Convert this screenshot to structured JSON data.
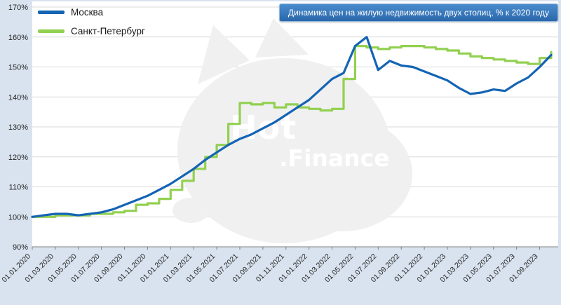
{
  "title_box": {
    "text": "Динамика цен на жилую недвижимость двух столиц, % к 2020 году"
  },
  "legend": {
    "items": [
      {
        "label": "Москва",
        "color": "#1464b4"
      },
      {
        "label": "Санкт-Петербург",
        "color": "#92d050"
      }
    ]
  },
  "watermark": {
    "line1": "Hot",
    "line2": ".Finance"
  },
  "colors": {
    "background": "#d9e3ef",
    "plot": "#ffffff",
    "grid": "#d9d9d9",
    "axis": "#7f7f7f",
    "title_bg_top": "#4a8ccd",
    "title_bg": "#2a67ab",
    "title_border": "#8fb8e0",
    "watermark": "#f0f0f0",
    "watermark_text": "#ffffff"
  },
  "chart_data": {
    "type": "line",
    "title": "Динамика цен на жилую недвижимость двух столиц, % к 2020 году",
    "ylabel": "% к 2020 году",
    "xlabel": "",
    "ylim": [
      90,
      170
    ],
    "y_tick_step": 10,
    "y_tick_suffix": "%",
    "grid": "horizontal",
    "legend_position": "top-left",
    "tick_every": 2,
    "x_tick_labels": [
      "01.01.2020",
      "01.03.2020",
      "01.05.2020",
      "01.07.2020",
      "01.09.2020",
      "01.11.2020",
      "01.01.2021",
      "01.03.2021",
      "01.05.2021",
      "01.07.2021",
      "01.09.2021",
      "01.11.2021",
      "01.01.2022",
      "01.03.2022",
      "01.05.2022",
      "01.07.2022",
      "01.09.2022",
      "01.11.2022",
      "01.01.2023",
      "01.03.2023",
      "01.05.2023",
      "01.07.2023",
      "01.09.2023"
    ],
    "x_months": [
      "01.2020",
      "02.2020",
      "03.2020",
      "04.2020",
      "05.2020",
      "06.2020",
      "07.2020",
      "08.2020",
      "09.2020",
      "10.2020",
      "11.2020",
      "12.2020",
      "01.2021",
      "02.2021",
      "03.2021",
      "04.2021",
      "05.2021",
      "06.2021",
      "07.2021",
      "08.2021",
      "09.2021",
      "10.2021",
      "11.2021",
      "12.2021",
      "01.2022",
      "02.2022",
      "03.2022",
      "04.2022",
      "05.2022",
      "06.2022",
      "07.2022",
      "08.2022",
      "09.2022",
      "10.2022",
      "11.2022",
      "12.2022",
      "01.2023",
      "02.2023",
      "03.2023",
      "04.2023",
      "05.2023",
      "06.2023",
      "07.2023",
      "08.2023",
      "09.2023",
      "10.2023"
    ],
    "series": [
      {
        "name": "Москва",
        "color": "#1464b4",
        "step": false,
        "values": [
          100,
          100.5,
          101,
          101,
          100.5,
          101,
          101.5,
          102.5,
          104,
          105.5,
          107,
          109,
          111,
          113.5,
          116,
          119,
          121.5,
          124,
          126,
          127.5,
          129.5,
          131.5,
          134,
          136.5,
          139,
          142.5,
          146,
          148,
          157,
          160,
          149,
          152,
          150.5,
          150,
          148.5,
          147,
          145.5,
          143,
          141,
          141.5,
          142.5,
          142,
          144.5,
          146.5,
          150,
          154
        ]
      },
      {
        "name": "Санкт-Петербург",
        "color": "#92d050",
        "step": true,
        "values": [
          100,
          100,
          100.5,
          100.5,
          100.5,
          101,
          101,
          101.5,
          102,
          104,
          104.5,
          106,
          109,
          112,
          116,
          120,
          124,
          131,
          138,
          137.5,
          138,
          136.5,
          137.5,
          136.5,
          136,
          135.5,
          136,
          146,
          157,
          156.5,
          156,
          156.5,
          157,
          157,
          156.5,
          156,
          155.5,
          154.5,
          153.5,
          153,
          152.5,
          152,
          151.5,
          151,
          153,
          155
        ]
      }
    ]
  }
}
